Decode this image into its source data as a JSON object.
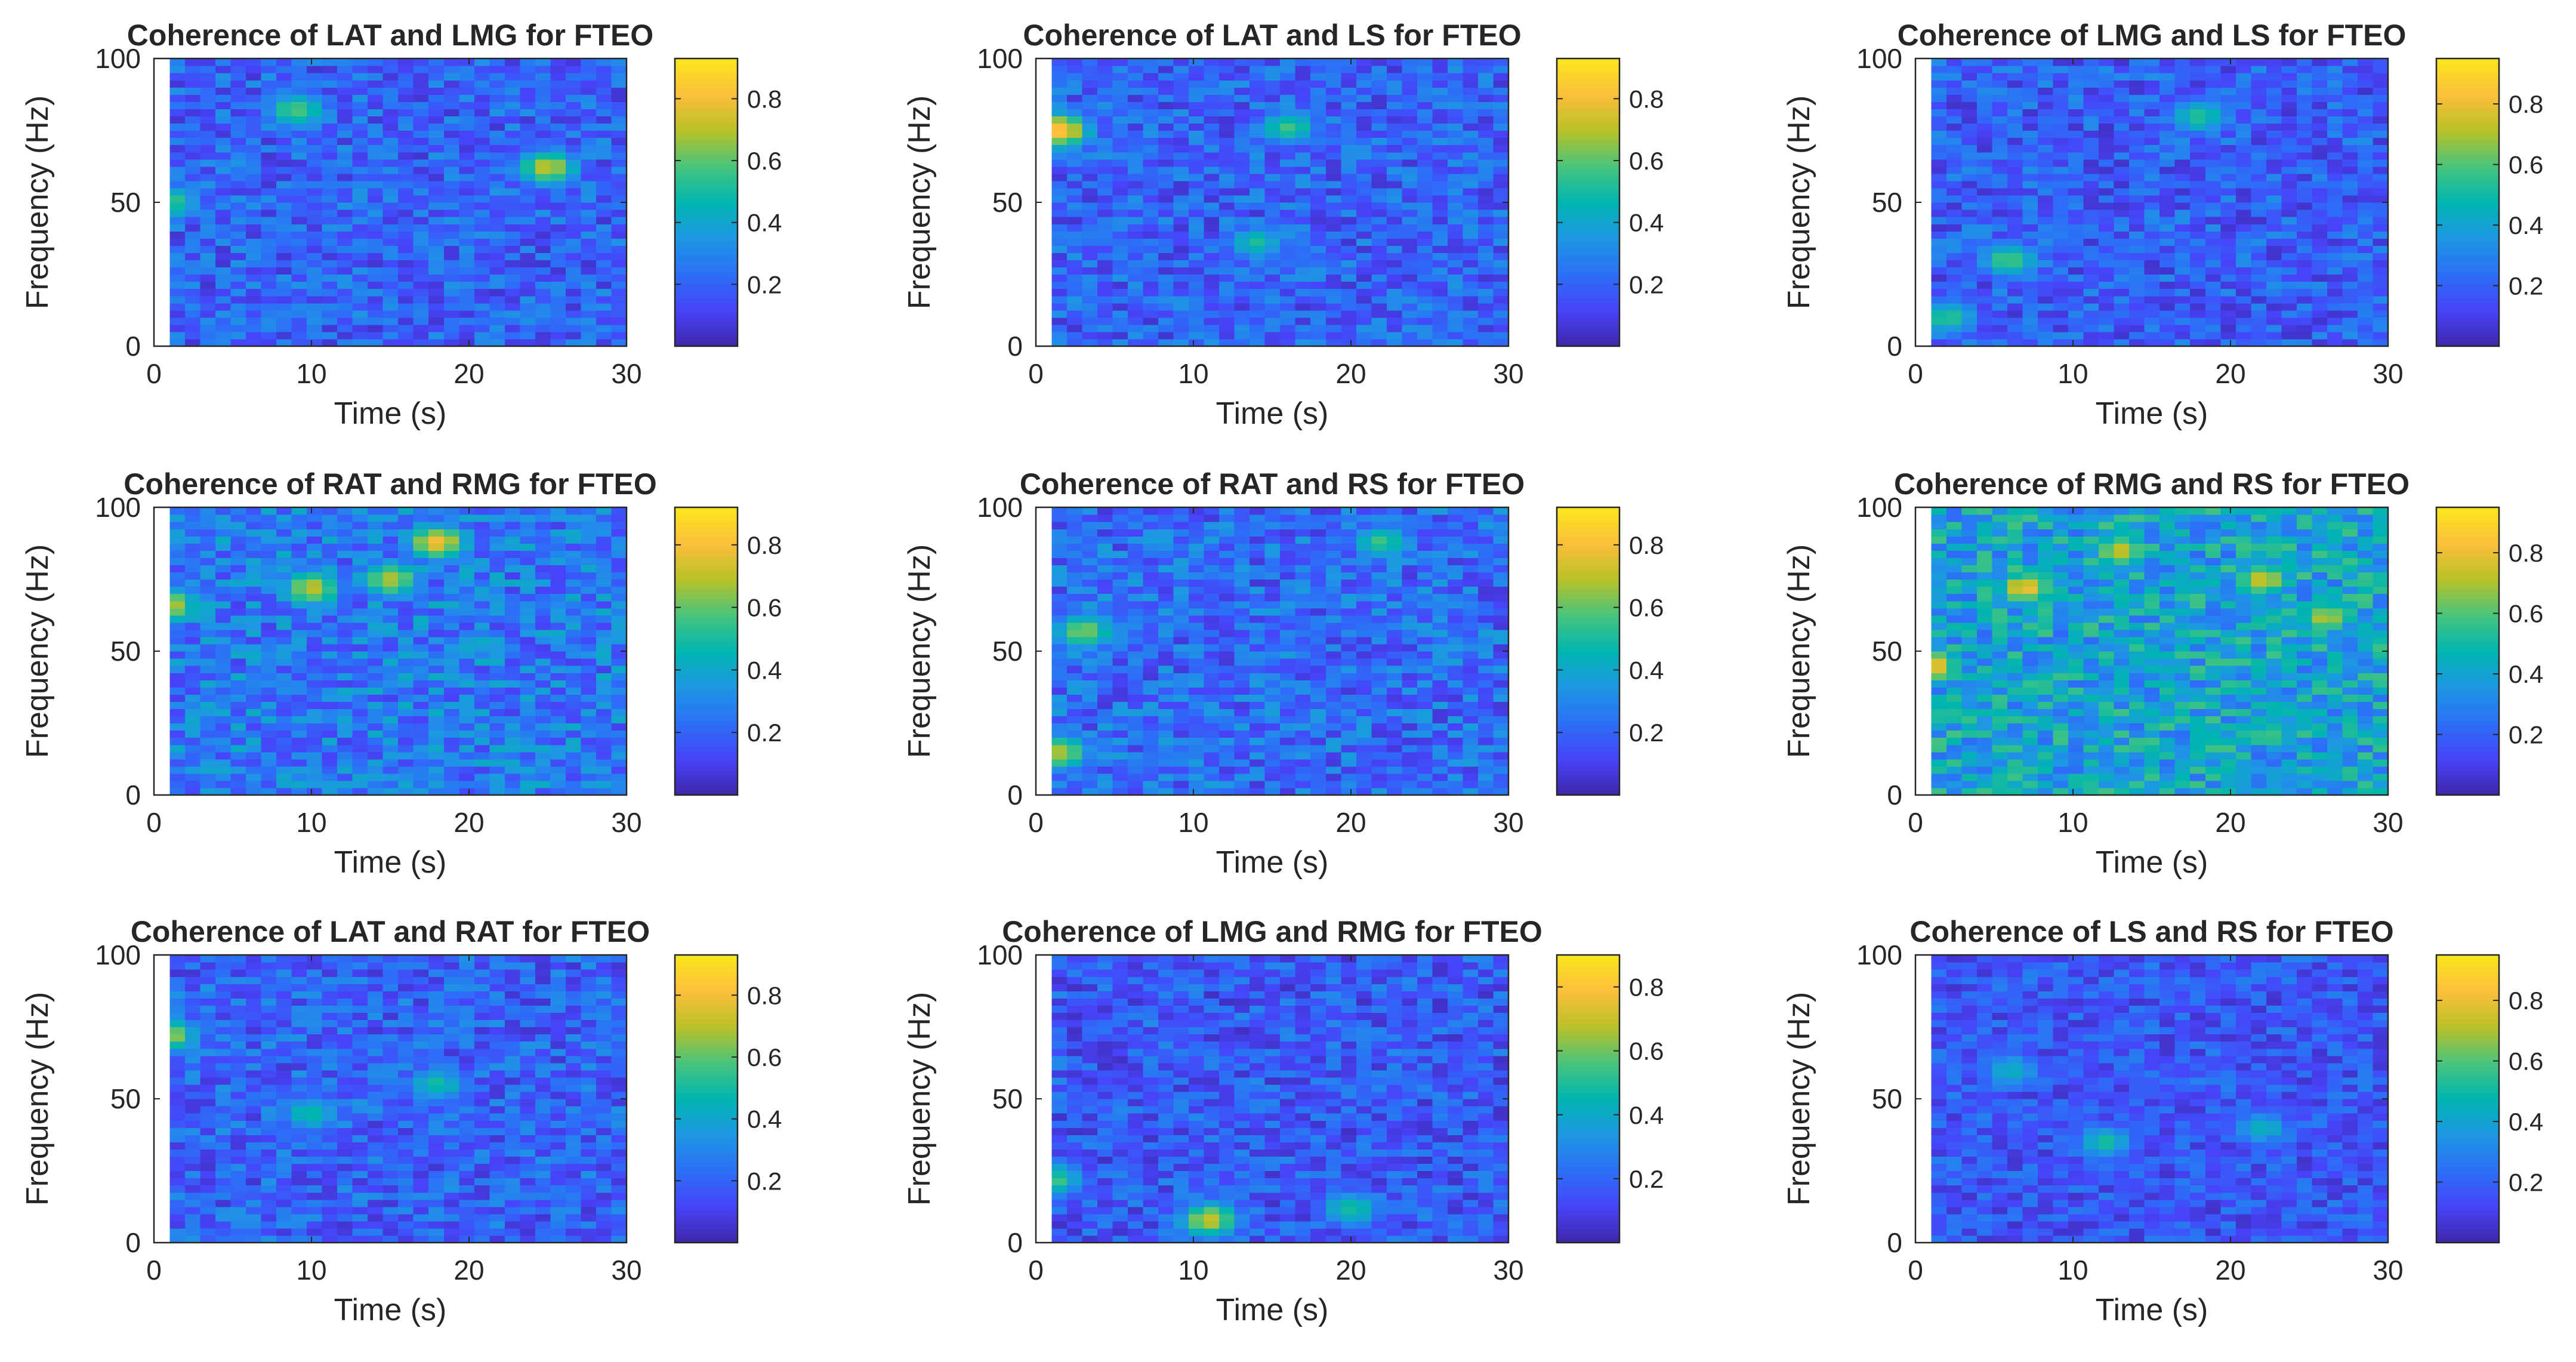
{
  "colormap": [
    "#3e26a8",
    "#4743f8",
    "#2c6ff7",
    "#1e97e3",
    "#00b5b0",
    "#48c47d",
    "#b8c129",
    "#fcbe3b",
    "#f9e71e"
  ],
  "axis_color": "#262626",
  "chart_data": [
    {
      "type": "heatmap",
      "title": "Coherence of LAT and LMG for FTEO",
      "xlabel": "Time (s)",
      "ylabel": "Frequency (Hz)",
      "xlim": [
        0,
        30
      ],
      "ylim": [
        0,
        100
      ],
      "xticks": [
        0,
        10,
        20,
        30
      ],
      "yticks": [
        0,
        50,
        100
      ],
      "data_x_range": [
        1,
        30
      ],
      "grid_columns": 30,
      "grid_rows": 40,
      "colorbar": {
        "range": [
          0,
          0.93
        ],
        "ticks": [
          0.2,
          0.4,
          0.6,
          0.8
        ],
        "tick_labels": [
          "0.2",
          "0.4",
          "0.6",
          "0.8"
        ]
      },
      "value_summary": {
        "baseline": 0.2,
        "spread": 0.14,
        "peaks": [
          {
            "t": 25,
            "f": 62,
            "v": 0.72
          },
          {
            "t": 9,
            "f": 82,
            "v": 0.6
          },
          {
            "t": 1,
            "f": 50,
            "v": 0.55
          }
        ]
      }
    },
    {
      "type": "heatmap",
      "title": "Coherence of LAT and LS for FTEO",
      "xlabel": "Time (s)",
      "ylabel": "Frequency (Hz)",
      "xlim": [
        0,
        30
      ],
      "ylim": [
        0,
        100
      ],
      "xticks": [
        0,
        10,
        20,
        30
      ],
      "yticks": [
        0,
        50,
        100
      ],
      "data_x_range": [
        1,
        30
      ],
      "grid_columns": 30,
      "grid_rows": 40,
      "colorbar": {
        "range": [
          0,
          0.93
        ],
        "ticks": [
          0.2,
          0.4,
          0.6,
          0.8
        ],
        "tick_labels": [
          "0.2",
          "0.4",
          "0.6",
          "0.8"
        ]
      },
      "value_summary": {
        "baseline": 0.2,
        "spread": 0.14,
        "peaks": [
          {
            "t": 1.5,
            "f": 75,
            "v": 0.85
          },
          {
            "t": 16,
            "f": 76,
            "v": 0.55
          },
          {
            "t": 14,
            "f": 36,
            "v": 0.5
          }
        ]
      }
    },
    {
      "type": "heatmap",
      "title": "Coherence of LMG and LS for FTEO",
      "xlabel": "Time (s)",
      "ylabel": "Frequency (Hz)",
      "xlim": [
        0,
        30
      ],
      "ylim": [
        0,
        100
      ],
      "xticks": [
        0,
        10,
        20,
        30
      ],
      "yticks": [
        0,
        50,
        100
      ],
      "data_x_range": [
        1,
        30
      ],
      "grid_columns": 30,
      "grid_rows": 40,
      "colorbar": {
        "range": [
          0,
          0.95
        ],
        "ticks": [
          0.2,
          0.4,
          0.6,
          0.8
        ],
        "tick_labels": [
          "0.2",
          "0.4",
          "0.6",
          "0.8"
        ]
      },
      "value_summary": {
        "baseline": 0.19,
        "spread": 0.14,
        "peaks": [
          {
            "t": 6,
            "f": 30,
            "v": 0.6
          },
          {
            "t": 18,
            "f": 80,
            "v": 0.55
          },
          {
            "t": 2,
            "f": 10,
            "v": 0.55
          }
        ]
      }
    },
    {
      "type": "heatmap",
      "title": "Coherence of RAT and RMG for FTEO",
      "xlabel": "Time (s)",
      "ylabel": "Frequency (Hz)",
      "xlim": [
        0,
        30
      ],
      "ylim": [
        0,
        100
      ],
      "xticks": [
        0,
        10,
        20,
        30
      ],
      "yticks": [
        0,
        50,
        100
      ],
      "data_x_range": [
        1,
        30
      ],
      "grid_columns": 30,
      "grid_rows": 40,
      "colorbar": {
        "range": [
          0,
          0.92
        ],
        "ticks": [
          0.2,
          0.4,
          0.6,
          0.8
        ],
        "tick_labels": [
          "0.2",
          "0.4",
          "0.6",
          "0.8"
        ]
      },
      "value_summary": {
        "baseline": 0.26,
        "spread": 0.16,
        "peaks": [
          {
            "t": 18,
            "f": 88,
            "v": 0.78
          },
          {
            "t": 10,
            "f": 72,
            "v": 0.72
          },
          {
            "t": 15,
            "f": 75,
            "v": 0.7
          },
          {
            "t": 1,
            "f": 66,
            "v": 0.7
          }
        ]
      }
    },
    {
      "type": "heatmap",
      "title": "Coherence of RAT and RS for FTEO",
      "xlabel": "Time (s)",
      "ylabel": "Frequency (Hz)",
      "xlim": [
        0,
        30
      ],
      "ylim": [
        0,
        100
      ],
      "xticks": [
        0,
        10,
        20,
        30
      ],
      "yticks": [
        0,
        50,
        100
      ],
      "data_x_range": [
        1,
        30
      ],
      "grid_columns": 30,
      "grid_rows": 40,
      "colorbar": {
        "range": [
          0,
          0.92
        ],
        "ticks": [
          0.2,
          0.4,
          0.6,
          0.8
        ],
        "tick_labels": [
          "0.2",
          "0.4",
          "0.6",
          "0.8"
        ]
      },
      "value_summary": {
        "baseline": 0.22,
        "spread": 0.15,
        "peaks": [
          {
            "t": 1.5,
            "f": 15,
            "v": 0.7
          },
          {
            "t": 3,
            "f": 57,
            "v": 0.65
          },
          {
            "t": 22,
            "f": 88,
            "v": 0.55
          }
        ]
      }
    },
    {
      "type": "heatmap",
      "title": "Coherence of RMG and RS for FTEO",
      "xlabel": "Time (s)",
      "ylabel": "Frequency (Hz)",
      "xlim": [
        0,
        30
      ],
      "ylim": [
        0,
        100
      ],
      "xticks": [
        0,
        10,
        20,
        30
      ],
      "yticks": [
        0,
        50,
        100
      ],
      "data_x_range": [
        1,
        30
      ],
      "grid_columns": 30,
      "grid_rows": 40,
      "colorbar": {
        "range": [
          0,
          0.95
        ],
        "ticks": [
          0.2,
          0.4,
          0.6,
          0.8
        ],
        "tick_labels": [
          "0.2",
          "0.4",
          "0.6",
          "0.8"
        ]
      },
      "value_summary": {
        "baseline": 0.4,
        "spread": 0.18,
        "peaks": [
          {
            "t": 1,
            "f": 45,
            "v": 0.85
          },
          {
            "t": 7,
            "f": 72,
            "v": 0.8
          },
          {
            "t": 13,
            "f": 85,
            "v": 0.75
          },
          {
            "t": 22,
            "f": 75,
            "v": 0.75
          },
          {
            "t": 26,
            "f": 62,
            "v": 0.7
          }
        ]
      }
    },
    {
      "type": "heatmap",
      "title": "Coherence of LAT and RAT for FTEO",
      "xlabel": "Time (s)",
      "ylabel": "Frequency (Hz)",
      "xlim": [
        0,
        30
      ],
      "ylim": [
        0,
        100
      ],
      "xticks": [
        0,
        10,
        20,
        30
      ],
      "yticks": [
        0,
        50,
        100
      ],
      "data_x_range": [
        1,
        30
      ],
      "grid_columns": 30,
      "grid_rows": 40,
      "colorbar": {
        "range": [
          0,
          0.93
        ],
        "ticks": [
          0.2,
          0.4,
          0.6,
          0.8
        ],
        "tick_labels": [
          "0.2",
          "0.4",
          "0.6",
          "0.8"
        ]
      },
      "value_summary": {
        "baseline": 0.2,
        "spread": 0.14,
        "peaks": [
          {
            "t": 1,
            "f": 72,
            "v": 0.65
          },
          {
            "t": 18,
            "f": 55,
            "v": 0.5
          },
          {
            "t": 10,
            "f": 45,
            "v": 0.5
          }
        ]
      }
    },
    {
      "type": "heatmap",
      "title": "Coherence of LMG and RMG for FTEO",
      "xlabel": "Time (s)",
      "ylabel": "Frequency (Hz)",
      "xlim": [
        0,
        30
      ],
      "ylim": [
        0,
        100
      ],
      "xticks": [
        0,
        10,
        20,
        30
      ],
      "yticks": [
        0,
        50,
        100
      ],
      "data_x_range": [
        1,
        30
      ],
      "grid_columns": 30,
      "grid_rows": 40,
      "colorbar": {
        "range": [
          0,
          0.9
        ],
        "ticks": [
          0.2,
          0.4,
          0.6,
          0.8
        ],
        "tick_labels": [
          "0.2",
          "0.4",
          "0.6",
          "0.8"
        ]
      },
      "value_summary": {
        "baseline": 0.17,
        "spread": 0.13,
        "peaks": [
          {
            "t": 11,
            "f": 8,
            "v": 0.7
          },
          {
            "t": 1,
            "f": 22,
            "v": 0.55
          },
          {
            "t": 20,
            "f": 12,
            "v": 0.5
          }
        ]
      }
    },
    {
      "type": "heatmap",
      "title": "Coherence of LS and RS for FTEO",
      "xlabel": "Time (s)",
      "ylabel": "Frequency (Hz)",
      "xlim": [
        0,
        30
      ],
      "ylim": [
        0,
        100
      ],
      "xticks": [
        0,
        10,
        20,
        30
      ],
      "yticks": [
        0,
        50,
        100
      ],
      "data_x_range": [
        1,
        30
      ],
      "grid_columns": 30,
      "grid_rows": 40,
      "colorbar": {
        "range": [
          0,
          0.95
        ],
        "ticks": [
          0.2,
          0.4,
          0.6,
          0.8
        ],
        "tick_labels": [
          "0.2",
          "0.4",
          "0.6",
          "0.8"
        ]
      },
      "value_summary": {
        "baseline": 0.17,
        "spread": 0.12,
        "peaks": [
          {
            "t": 12,
            "f": 35,
            "v": 0.5
          },
          {
            "t": 6,
            "f": 60,
            "v": 0.45
          },
          {
            "t": 22,
            "f": 40,
            "v": 0.45
          }
        ]
      }
    }
  ]
}
